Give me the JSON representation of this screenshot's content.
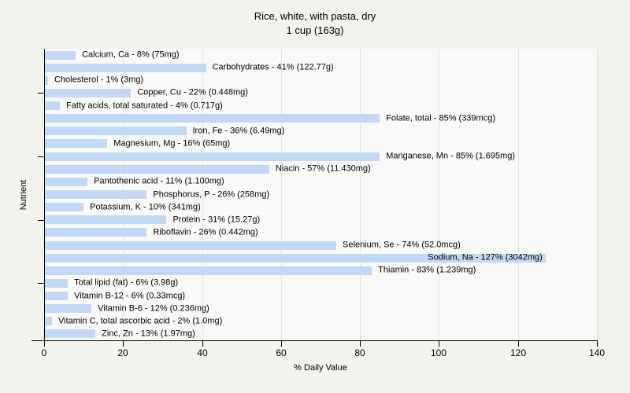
{
  "title": {
    "line1": "Rice, white, with pasta, dry",
    "line2": "1 cup (163g)"
  },
  "colors": {
    "page_background": "#f2f2ef",
    "plot_background": "#f9f9f7",
    "bar_fill": "#c1d9f7",
    "gridline": "#e2e2de",
    "axis": "#000000"
  },
  "chart_data": {
    "type": "bar",
    "orientation": "horizontal",
    "title": "Rice, white, with pasta, dry 1 cup (163g)",
    "xlabel": "% Daily Value",
    "ylabel": "Nutrient",
    "xlim": [
      0,
      140
    ],
    "xticks": [
      0,
      20,
      40,
      60,
      80,
      100,
      120,
      140
    ],
    "grid": true,
    "ytick_rows": [
      3,
      8,
      13,
      18
    ],
    "bars": [
      {
        "label": "Calcium, Ca - 8% (75mg)",
        "value": 8
      },
      {
        "label": "Carbohydrates - 41% (122.77g)",
        "value": 41
      },
      {
        "label": "Cholesterol - 1% (3mg)",
        "value": 1
      },
      {
        "label": "Copper, Cu - 22% (0.448mg)",
        "value": 22
      },
      {
        "label": "Fatty acids, total saturated - 4% (0.717g)",
        "value": 4
      },
      {
        "label": "Folate, total - 85% (339mcg)",
        "value": 85
      },
      {
        "label": "Iron, Fe - 36% (6.49mg)",
        "value": 36
      },
      {
        "label": "Magnesium, Mg - 16% (65mg)",
        "value": 16
      },
      {
        "label": "Manganese, Mn - 85% (1.695mg)",
        "value": 85
      },
      {
        "label": "Niacin - 57% (11.430mg)",
        "value": 57
      },
      {
        "label": "Pantothenic acid - 11% (1.100mg)",
        "value": 11
      },
      {
        "label": "Phosphorus, P - 26% (258mg)",
        "value": 26
      },
      {
        "label": "Potassium, K - 10% (341mg)",
        "value": 10
      },
      {
        "label": "Protein - 31% (15.27g)",
        "value": 31
      },
      {
        "label": "Riboflavin - 26% (0.442mg)",
        "value": 26
      },
      {
        "label": "Selenium, Se - 74% (52.0mcg)",
        "value": 74
      },
      {
        "label": "Sodium, Na - 127% (3042mg)",
        "value": 127,
        "label_inside": true
      },
      {
        "label": "Thiamin - 83% (1.239mg)",
        "value": 83
      },
      {
        "label": "Total lipid (fat) - 6% (3.98g)",
        "value": 6
      },
      {
        "label": "Vitamin B-12 - 6% (0.33mcg)",
        "value": 6
      },
      {
        "label": "Vitamin B-6 - 12% (0.236mg)",
        "value": 12
      },
      {
        "label": "Vitamin C, total ascorbic acid - 2% (1.0mg)",
        "value": 2
      },
      {
        "label": "Zinc, Zn - 13% (1.97mg)",
        "value": 13
      }
    ]
  }
}
